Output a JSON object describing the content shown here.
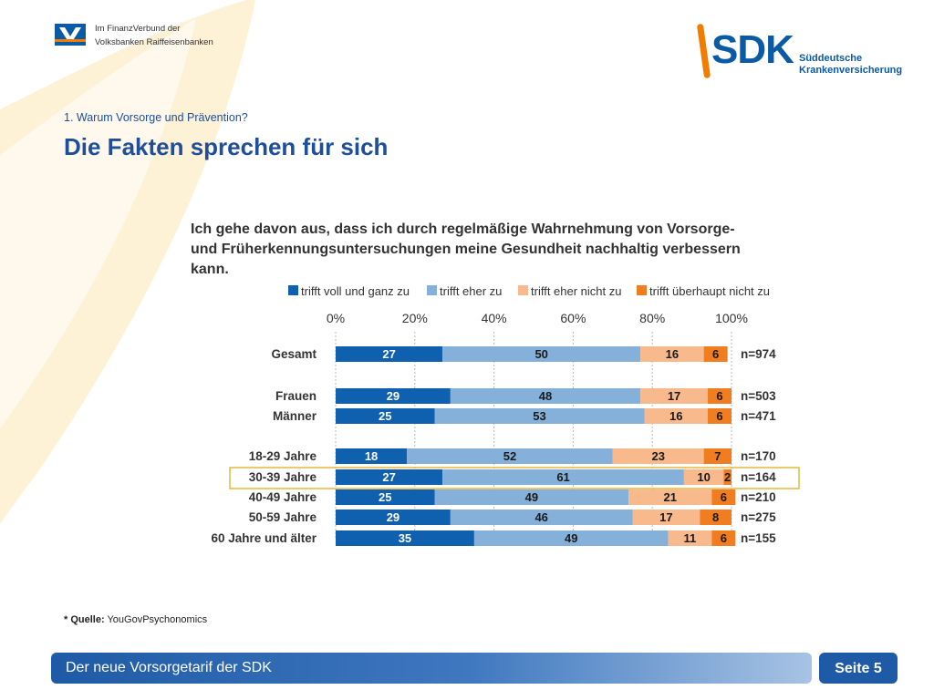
{
  "header": {
    "partner_line1": "Im FinanzVerbund der",
    "partner_line2": "Volksbanken Raiffeisenbanken",
    "brand": "SDK",
    "brand_sub1": "Süddeutsche",
    "brand_sub2": "Krankenversicherung"
  },
  "section_title": "1. Warum Vorsorge und Prävention?",
  "page_title": "Die Fakten sprechen für sich",
  "source": {
    "label": "* Quelle:",
    "value": "YouGovPsychonomics"
  },
  "footer": {
    "title": "Der neue Vorsorgetarif der SDK",
    "page": "Seite 5"
  },
  "colors": {
    "accent_blue": "#1f4e9a",
    "brand_orange": "#f07d00",
    "series": [
      "#1060b0",
      "#84b0da",
      "#f8b98c",
      "#f07d20"
    ],
    "highlight_border": "#e7b53c"
  },
  "chart_data": {
    "type": "bar",
    "orientation": "horizontal",
    "stacked": true,
    "title_lines": [
      "Ich gehe davon aus, dass ich durch regelmäßige Wahrnehmung von Vorsorge-",
      "und Früherkennungsuntersuchungen meine Gesundheit nachhaltig verbessern",
      "kann."
    ],
    "legend_position": "top",
    "x_axis_ticks": [
      "0%",
      "20%",
      "40%",
      "60%",
      "80%",
      "100%"
    ],
    "xlim": [
      0,
      100
    ],
    "grid": true,
    "categories": [
      "Gesamt",
      "Frauen",
      "Männer",
      "18-29 Jahre",
      "30-39 Jahre",
      "40-49 Jahre",
      "50-59 Jahre",
      "60 Jahre und älter"
    ],
    "sample_sizes": [
      "n=974",
      "n=503",
      "n=471",
      "n=170",
      "n=164",
      "n=210",
      "n=275",
      "n=155"
    ],
    "highlighted_category": "30-39 Jahre",
    "series": [
      {
        "name": "trifft voll und ganz zu",
        "values": [
          27,
          29,
          25,
          18,
          27,
          25,
          29,
          35
        ]
      },
      {
        "name": "trifft eher zu",
        "values": [
          50,
          48,
          53,
          52,
          61,
          49,
          46,
          49
        ]
      },
      {
        "name": "trifft eher nicht zu",
        "values": [
          16,
          17,
          16,
          23,
          10,
          21,
          17,
          11
        ]
      },
      {
        "name": "trifft überhaupt nicht zu",
        "values": [
          6,
          6,
          6,
          7,
          2,
          6,
          8,
          6
        ]
      }
    ]
  }
}
